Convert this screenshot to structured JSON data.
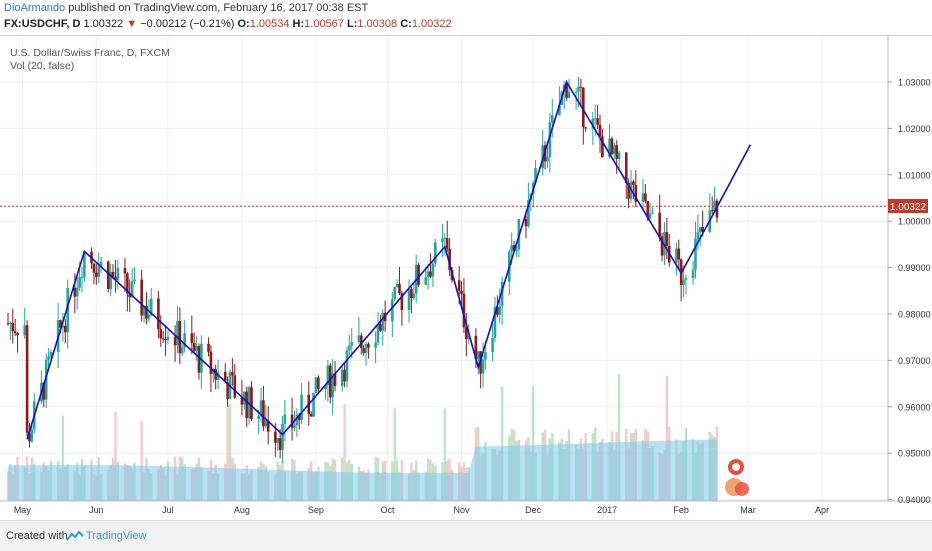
{
  "header": {
    "author": "DioArmando",
    "published": " published on TradingView.com, February 16, 2017 00:38 EST"
  },
  "ticker": {
    "symbol": "FX:USDCHF, D",
    "last": "1.00322",
    "change": "−0.00212 (−0.21%)",
    "o_label": "O:",
    "o": "1.00534",
    "h_label": "H:",
    "h": "1.00567",
    "l_label": "L:",
    "l": "1.00308",
    "c_label": "C:",
    "c": "1.00322"
  },
  "legend": {
    "title": "U.S. Dollar/Swiss Franc, D, FXCM",
    "indicator": "Vol (20, false)"
  },
  "price_label": "1.00322",
  "footer": {
    "created": "Created with",
    "brand": "TradingView"
  },
  "colors": {
    "up": "#26a69a",
    "down": "#8b1a1a",
    "zigzag": "#1010c8",
    "vol_up": "#a6dcb0",
    "vol_down": "#f2b8b8",
    "vol_ma": "#7ec8ec",
    "price_line": "#c0392b"
  },
  "chart_data": {
    "type": "candlestick",
    "yaxis": {
      "ticks": [
        "1.03000",
        "1.02000",
        "1.01000",
        "1.00000",
        "0.99000",
        "0.98000",
        "0.97000",
        "0.96000",
        "0.95000",
        "0.94000"
      ],
      "ylim": [
        0.9396,
        1.0356
      ]
    },
    "xaxis": {
      "ticks": [
        "May",
        "Jun",
        "Jul",
        "Aug",
        "Sep",
        "Oct",
        "Nov",
        "Dec",
        "2017",
        "Feb",
        "Mar",
        "Apr"
      ]
    },
    "current_price": 1.00322,
    "zigzag": [
      {
        "date": "2016-05-03",
        "price": 0.953
      },
      {
        "date": "2016-05-27",
        "price": 0.9935
      },
      {
        "date": "2016-08-18",
        "price": 0.954
      },
      {
        "date": "2016-10-25",
        "price": 0.9945
      },
      {
        "date": "2016-11-08",
        "price": 0.9685
      },
      {
        "date": "2016-12-15",
        "price": 1.03
      },
      {
        "date": "2017-02-01",
        "price": 0.9888
      },
      {
        "date": "2017-02-16",
        "price": 1.003
      }
    ],
    "projection": {
      "date": "2017-03-02",
      "price": 1.0165
    }
  }
}
